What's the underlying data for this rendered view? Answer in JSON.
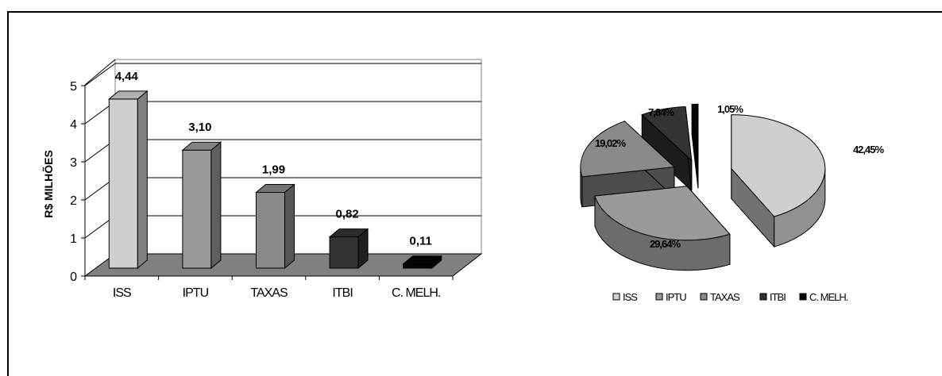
{
  "chart_data": [
    {
      "type": "bar",
      "ylabel": "R$ MILHÕES",
      "ylim": [
        0,
        5
      ],
      "yticks": [
        "0",
        "1",
        "2",
        "3",
        "4",
        "5"
      ],
      "grid": true,
      "categories": [
        "ISS",
        "IPTU",
        "TAXAS",
        "ITBI",
        "C. MELH."
      ],
      "values": [
        4.44,
        3.1,
        1.99,
        0.82,
        0.11
      ],
      "value_labels": [
        "4,44",
        "3,10",
        "1,99",
        "0,82",
        "0,11"
      ],
      "colors": [
        "#cfcfcf",
        "#9a9a9a",
        "#8a8a8a",
        "#333333",
        "#050505"
      ]
    },
    {
      "type": "pie",
      "categories": [
        "ISS",
        "IPTU",
        "TAXAS",
        "ITBI",
        "C. MELH."
      ],
      "values": [
        42.45,
        29.64,
        19.02,
        7.84,
        1.05
      ],
      "value_labels": [
        "42,45%",
        "29,64%",
        "19,02%",
        "7,84%",
        "1,05%"
      ],
      "legend_labels": [
        "ISS",
        "IPTU",
        "TAXAS",
        "ITBI",
        "C. MELH."
      ],
      "legend": "bottom",
      "colors": [
        "#cfcfcf",
        "#9a9a9a",
        "#8a8a8a",
        "#333333",
        "#050505"
      ]
    }
  ]
}
